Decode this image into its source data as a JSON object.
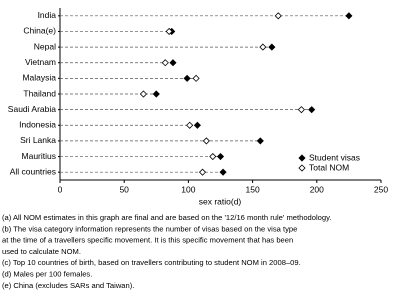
{
  "chart_data": {
    "type": "dot",
    "categories": [
      "India",
      "China(e)",
      "Nepal",
      "Vietnam",
      "Malaysia",
      "Thailand",
      "Saudi Arabia",
      "Indonesia",
      "Sri Lanka",
      "Mauritius",
      "All countries"
    ],
    "series": [
      {
        "name": "Student visas",
        "color": "#000000",
        "marker": "filled",
        "values": [
          225,
          87,
          165,
          88,
          99,
          75,
          196,
          107,
          156,
          125,
          127
        ]
      },
      {
        "name": "Total NOM",
        "color": "#000000",
        "marker": "open",
        "values": [
          170,
          85,
          158,
          82,
          106,
          65,
          188,
          101,
          114,
          119,
          111
        ]
      }
    ],
    "xlabel": "sex ratio(d)",
    "xlim": [
      0,
      250
    ],
    "xticks": [
      0,
      50,
      100,
      150,
      200,
      250
    ],
    "legend": "lower right",
    "notes": [
      "(a) All NOM estimates in this graph are final and are based on the '12/16 month rule' methodology.",
      "(b) The visa category information represents the number of visas based on the visa type",
      "at the time of a travellers specific movement. It is this specific movement that has been",
      "used to calculate NOM.",
      "(c) Top 10 countries of birth, based on travellers contributing to student NOM in 2008–09.",
      "(d) Males per 100 females.",
      "(e) China (excludes SARs and Taiwan)."
    ]
  }
}
